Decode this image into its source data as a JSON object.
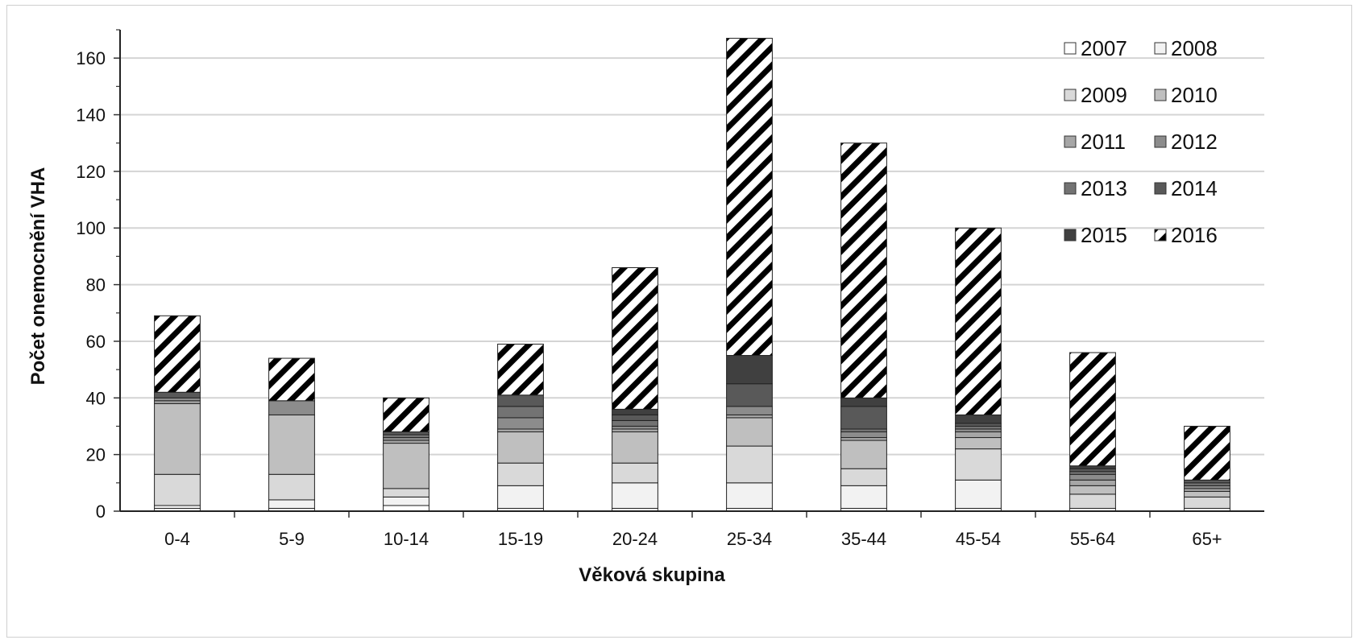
{
  "chart_data": {
    "type": "bar",
    "stacked": true,
    "title": "",
    "xlabel": "Věková skupina",
    "ylabel": "Počet onemocnění VHA",
    "ylim": [
      0,
      170
    ],
    "yticks": [
      0,
      20,
      40,
      60,
      80,
      100,
      120,
      140,
      160
    ],
    "grid": true,
    "legend_position": "top-right",
    "categories": [
      "0-4",
      "5-9",
      "10-14",
      "15-19",
      "20-24",
      "25-34",
      "35-44",
      "45-54",
      "55-64",
      "65+"
    ],
    "series": [
      {
        "name": "2007",
        "fill": "#ffffff",
        "values": [
          1,
          1,
          2,
          1,
          1,
          1,
          1,
          1,
          1,
          1
        ]
      },
      {
        "name": "2008",
        "fill": "#f2f2f2",
        "values": [
          1,
          3,
          3,
          8,
          9,
          9,
          8,
          10,
          0,
          0
        ]
      },
      {
        "name": "2009",
        "fill": "#d9d9d9",
        "values": [
          11,
          9,
          3,
          8,
          7,
          13,
          6,
          11,
          5,
          4
        ]
      },
      {
        "name": "2010",
        "fill": "#bfbfbf",
        "values": [
          25,
          21,
          16,
          11,
          11,
          10,
          10,
          4,
          3,
          2
        ]
      },
      {
        "name": "2011",
        "fill": "#a6a6a6",
        "values": [
          1,
          0,
          1,
          1,
          1,
          1,
          1,
          2,
          2,
          1
        ]
      },
      {
        "name": "2012",
        "fill": "#8c8c8c",
        "values": [
          1,
          5,
          1,
          4,
          1,
          3,
          2,
          1,
          2,
          1
        ]
      },
      {
        "name": "2013",
        "fill": "#737373",
        "values": [
          0,
          0,
          1,
          4,
          2,
          0,
          1,
          1,
          1,
          1
        ]
      },
      {
        "name": "2014",
        "fill": "#595959",
        "values": [
          2,
          0,
          1,
          4,
          2,
          8,
          8,
          1,
          1,
          1
        ]
      },
      {
        "name": "2015",
        "fill": "#404040",
        "values": [
          0,
          0,
          0,
          0,
          2,
          10,
          3,
          3,
          1,
          0
        ]
      },
      {
        "name": "2016",
        "fill": "stripe",
        "values": [
          27,
          15,
          12,
          18,
          50,
          112,
          90,
          66,
          40,
          19
        ]
      }
    ]
  }
}
